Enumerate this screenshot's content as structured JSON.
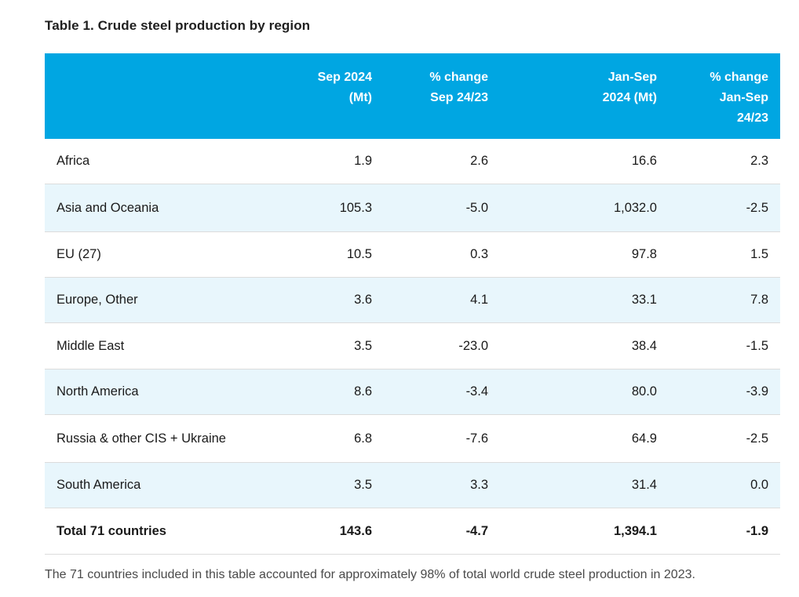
{
  "title": "Table 1. Crude steel production by region",
  "headers": {
    "col1": [
      "Sep 2024",
      "(Mt)"
    ],
    "col2": [
      "% change",
      "Sep 24/23"
    ],
    "col3": [
      "Jan-Sep",
      "2024 (Mt)"
    ],
    "col4": [
      "% change",
      "Jan-Sep",
      "24/23"
    ]
  },
  "rows": [
    {
      "region": "Africa",
      "sep": "1.9",
      "sep_change": "2.6",
      "ytd": "16.6",
      "ytd_change": "2.3"
    },
    {
      "region": "Asia and Oceania",
      "sep": "105.3",
      "sep_change": "-5.0",
      "ytd": "1,032.0",
      "ytd_change": "-2.5"
    },
    {
      "region": "EU (27)",
      "sep": "10.5",
      "sep_change": "0.3",
      "ytd": "97.8",
      "ytd_change": "1.5"
    },
    {
      "region": "Europe, Other",
      "sep": "3.6",
      "sep_change": "4.1",
      "ytd": "33.1",
      "ytd_change": "7.8"
    },
    {
      "region": "Middle East",
      "sep": "3.5",
      "sep_change": "-23.0",
      "ytd": "38.4",
      "ytd_change": "-1.5"
    },
    {
      "region": "North America",
      "sep": "8.6",
      "sep_change": "-3.4",
      "ytd": "80.0",
      "ytd_change": "-3.9"
    },
    {
      "region": "Russia & other CIS + Ukraine",
      "sep": "6.8",
      "sep_change": "-7.6",
      "ytd": "64.9",
      "ytd_change": "-2.5"
    },
    {
      "region": "South America",
      "sep": "3.5",
      "sep_change": "3.3",
      "ytd": "31.4",
      "ytd_change": "0.0"
    }
  ],
  "total": {
    "region": "Total 71 countries",
    "sep": "143.6",
    "sep_change": "-4.7",
    "ytd": "1,394.1",
    "ytd_change": "-1.9"
  },
  "footnote": "The 71 countries included in this table accounted for approximately 98% of total world crude steel production in 2023.",
  "colors": {
    "header_bg": "#00a6e2",
    "alt_row_bg": "#e8f6fc"
  }
}
